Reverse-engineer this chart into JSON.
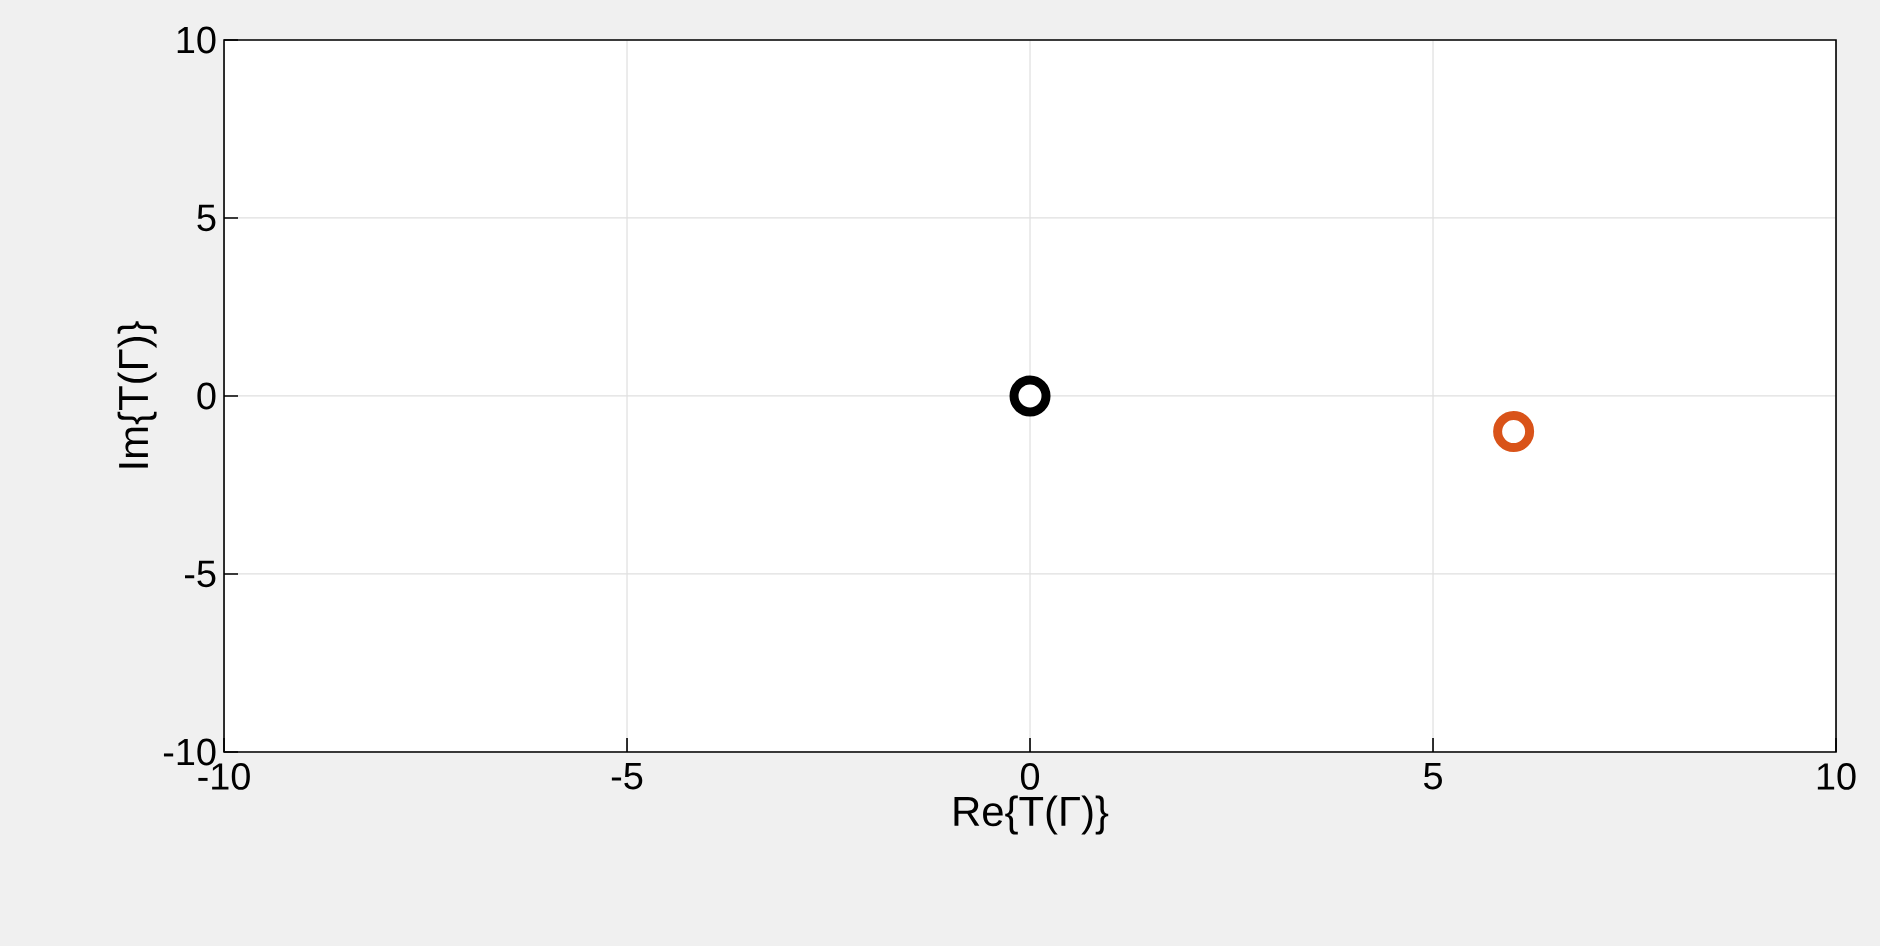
{
  "chart_data": {
    "type": "scatter",
    "xlabel": "Re{T(Γ)}",
    "ylabel": "Im{T(Γ)}",
    "xlim": [
      -10,
      10
    ],
    "ylim": [
      -10,
      10
    ],
    "xticks": [
      -10,
      -5,
      0,
      5,
      10
    ],
    "yticks": [
      -10,
      -5,
      0,
      5,
      10
    ],
    "grid": true,
    "marker": "circle",
    "series": [
      {
        "color": "#000000",
        "x": [
          0
        ],
        "values": [
          0
        ]
      },
      {
        "color": "#d95319",
        "x": [
          6
        ],
        "values": [
          -1
        ]
      }
    ]
  }
}
